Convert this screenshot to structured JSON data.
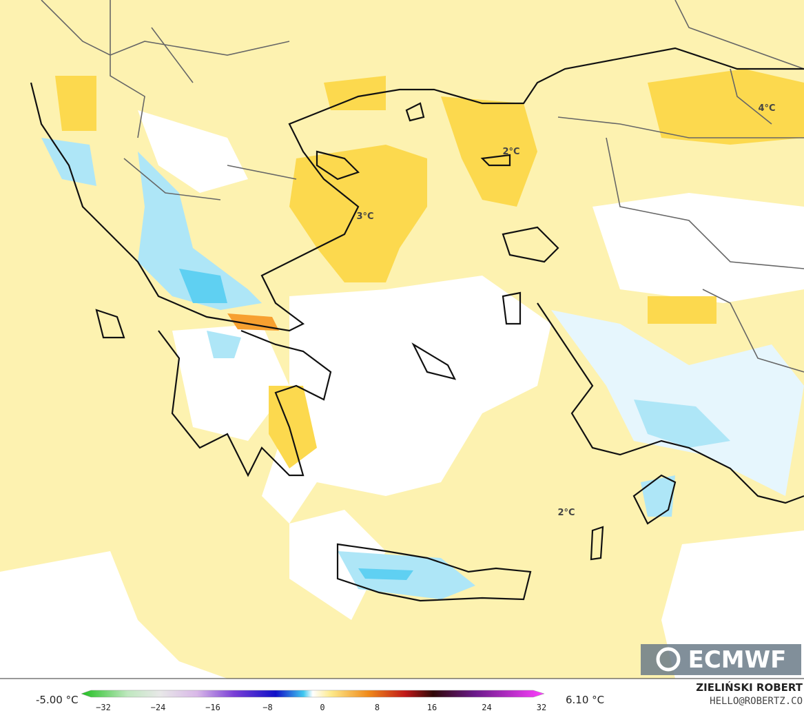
{
  "map": {
    "labels": [
      "2°C",
      "3°C",
      "2°C",
      "4°C"
    ],
    "brand": "ECMWF",
    "legend": {
      "min": "-5.00 °C",
      "max": "6.10 °C",
      "ticks": [
        "−32",
        "−24",
        "−16",
        "−8",
        "0",
        "8",
        "16",
        "24",
        "32"
      ]
    },
    "author": "ZIELIŃSKI ROBERT",
    "contact": "HELLO@ROBERTZ.CO"
  }
}
